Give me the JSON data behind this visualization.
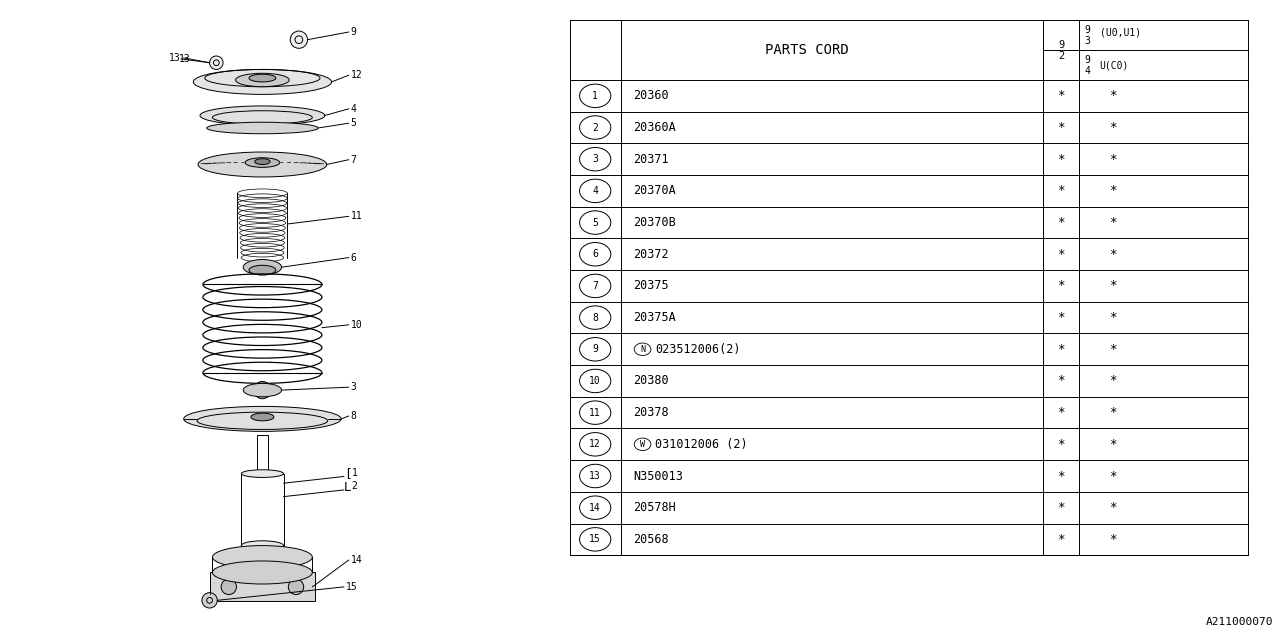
{
  "bg_color": "#ffffff",
  "title_ref": "A211000070",
  "line_color": "#000000",
  "table": {
    "rows": [
      {
        "num": "1",
        "prefix": "",
        "code": "20360",
        "col2": "*",
        "col3": "*"
      },
      {
        "num": "2",
        "prefix": "",
        "code": "20360A",
        "col2": "*",
        "col3": "*"
      },
      {
        "num": "3",
        "prefix": "",
        "code": "20371",
        "col2": "*",
        "col3": "*"
      },
      {
        "num": "4",
        "prefix": "",
        "code": "20370A",
        "col2": "*",
        "col3": "*"
      },
      {
        "num": "5",
        "prefix": "",
        "code": "20370B",
        "col2": "*",
        "col3": "*"
      },
      {
        "num": "6",
        "prefix": "",
        "code": "20372",
        "col2": "*",
        "col3": "*"
      },
      {
        "num": "7",
        "prefix": "",
        "code": "20375",
        "col2": "*",
        "col3": "*"
      },
      {
        "num": "8",
        "prefix": "",
        "code": "20375A",
        "col2": "*",
        "col3": "*"
      },
      {
        "num": "9",
        "prefix": "N",
        "code": "023512006(2)",
        "col2": "*",
        "col3": "*"
      },
      {
        "num": "10",
        "prefix": "",
        "code": "20380",
        "col2": "*",
        "col3": "*"
      },
      {
        "num": "11",
        "prefix": "",
        "code": "20378",
        "col2": "*",
        "col3": "*"
      },
      {
        "num": "12",
        "prefix": "W",
        "code": "031012006 (2)",
        "col2": "*",
        "col3": "*"
      },
      {
        "num": "13",
        "prefix": "",
        "code": "N350013",
        "col2": "*",
        "col3": "*"
      },
      {
        "num": "14",
        "prefix": "",
        "code": "20578H",
        "col2": "*",
        "col3": "*"
      },
      {
        "num": "15",
        "prefix": "",
        "code": "20568",
        "col2": "*",
        "col3": "*"
      }
    ]
  }
}
